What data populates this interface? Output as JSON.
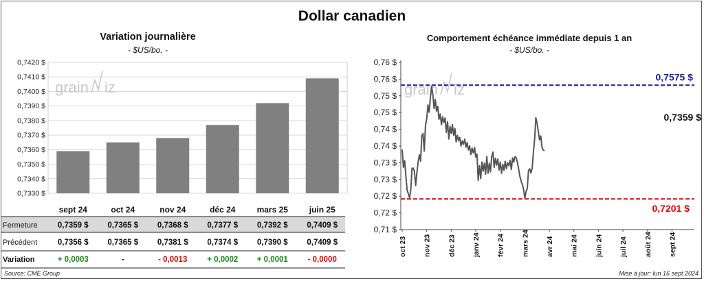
{
  "title": "Dollar canadien",
  "left": {
    "title": "Variation  journalière",
    "subtitle": "- $US/bo. -",
    "chart_data": {
      "type": "bar",
      "categories": [
        "sept 24",
        "oct 24",
        "nov 24",
        "déc 24",
        "mars 25",
        "juin 25"
      ],
      "values": [
        0.7359,
        0.7365,
        0.7368,
        0.7377,
        0.7392,
        0.7409
      ],
      "ylim": [
        0.733,
        0.742
      ],
      "yticks": [
        "0,7330 $",
        "0,7340 $",
        "0,7350 $",
        "0,7360 $",
        "0,7370 $",
        "0,7380 $",
        "0,7390 $",
        "0,7400 $",
        "0,7410 $",
        "0,7420 $"
      ],
      "bar_color": "#808080"
    },
    "table": {
      "rows": [
        {
          "label": "Fermeture",
          "cells": [
            "0,7359  $",
            "0,7365  $",
            "0,7368  $",
            "0,7377  $",
            "0,7392  $",
            "0,7409  $"
          ]
        },
        {
          "label": "Précédent",
          "cells": [
            "0,7356  $",
            "0,7365  $",
            "0,7381  $",
            "0,7374  $",
            "0,7390  $",
            "0,7409  $"
          ]
        },
        {
          "label": "Variation",
          "cells": [
            "+ 0,0003",
            "-",
            "- 0,0013",
            "+ 0,0002",
            "+ 0,0001",
            "- 0,0000"
          ],
          "colors": [
            "#1a8a1a",
            "#111111",
            "#e00000",
            "#1a8a1a",
            "#1a8a1a",
            "#e00000"
          ]
        }
      ]
    }
  },
  "right": {
    "title": "Comportement échéance immédiate depuis 1 an",
    "subtitle": "- $US/bo. -",
    "chart_data": {
      "type": "line",
      "ylim": [
        0.71,
        0.765
      ],
      "yticks": [
        "0,71 $",
        "0,72 $",
        "0,72 $",
        "0,73 $",
        "0,73 $",
        "0,74 $",
        "0,74 $",
        "0,75 $",
        "0,75 $",
        "0,76 $",
        "0,76 $"
      ],
      "xticks": [
        "oct 23",
        "nov 23",
        "déc 23",
        "janv 24",
        "févr 24",
        "mars 24",
        "avr 24",
        "mai 24",
        "juin 24",
        "juil 24",
        "août 24",
        "sept 24"
      ],
      "max_line": {
        "value": 0.7575,
        "label": "0,7575 $",
        "color": "#1a1aa0"
      },
      "min_line": {
        "value": 0.7201,
        "label": "0,7201 $",
        "color": "#e00000"
      },
      "last_label": "0,7359 $",
      "points": [
        [
          0,
          0.7363
        ],
        [
          0.05,
          0.7305
        ],
        [
          0.1,
          0.7327
        ],
        [
          0.15,
          0.7276
        ],
        [
          0.2,
          0.7231
        ],
        [
          0.25,
          0.7218
        ],
        [
          0.3,
          0.7205
        ],
        [
          0.35,
          0.7231
        ],
        [
          0.4,
          0.7302
        ],
        [
          0.45,
          0.7302
        ],
        [
          0.5,
          0.7291
        ],
        [
          0.55,
          0.7245
        ],
        [
          0.6,
          0.7288
        ],
        [
          0.65,
          0.7322
        ],
        [
          0.7,
          0.7346
        ],
        [
          0.75,
          0.7325
        ],
        [
          0.8,
          0.7408
        ],
        [
          0.85,
          0.7416
        ],
        [
          0.9,
          0.7358
        ],
        [
          0.95,
          0.7442
        ],
        [
          1.0,
          0.7465
        ],
        [
          1.05,
          0.751
        ],
        [
          1.1,
          0.7486
        ],
        [
          1.15,
          0.7534
        ],
        [
          1.2,
          0.7572
        ],
        [
          1.25,
          0.7545
        ],
        [
          1.3,
          0.7498
        ],
        [
          1.35,
          0.7528
        ],
        [
          1.4,
          0.749
        ],
        [
          1.45,
          0.7505
        ],
        [
          1.5,
          0.7463
        ],
        [
          1.55,
          0.748
        ],
        [
          1.6,
          0.7445
        ],
        [
          1.65,
          0.7471
        ],
        [
          1.7,
          0.7452
        ],
        [
          1.75,
          0.7467
        ],
        [
          1.8,
          0.742
        ],
        [
          1.85,
          0.7455
        ],
        [
          1.9,
          0.7398
        ],
        [
          1.95,
          0.744
        ],
        [
          2.0,
          0.7416
        ],
        [
          2.05,
          0.7445
        ],
        [
          2.1,
          0.741
        ],
        [
          2.15,
          0.7433
        ],
        [
          2.2,
          0.7388
        ],
        [
          2.25,
          0.741
        ],
        [
          2.3,
          0.7392
        ],
        [
          2.35,
          0.7403
        ],
        [
          2.4,
          0.7375
        ],
        [
          2.45,
          0.7392
        ],
        [
          2.5,
          0.738
        ],
        [
          2.55,
          0.7397
        ],
        [
          2.6,
          0.7371
        ],
        [
          2.65,
          0.7386
        ],
        [
          2.7,
          0.7362
        ],
        [
          2.75,
          0.7375
        ],
        [
          2.8,
          0.7347
        ],
        [
          2.85,
          0.7368
        ],
        [
          2.9,
          0.7352
        ],
        [
          2.95,
          0.737
        ],
        [
          3.0,
          0.7339
        ],
        [
          3.05,
          0.7348
        ],
        [
          3.1,
          0.7262
        ],
        [
          3.15,
          0.731
        ],
        [
          3.2,
          0.7268
        ],
        [
          3.25,
          0.7322
        ],
        [
          3.3,
          0.7292
        ],
        [
          3.35,
          0.7318
        ],
        [
          3.4,
          0.7282
        ],
        [
          3.45,
          0.734
        ],
        [
          3.5,
          0.7285
        ],
        [
          3.55,
          0.7318
        ],
        [
          3.6,
          0.729
        ],
        [
          3.65,
          0.734
        ],
        [
          3.7,
          0.7355
        ],
        [
          3.75,
          0.7305
        ],
        [
          3.8,
          0.7335
        ],
        [
          3.85,
          0.7312
        ],
        [
          3.9,
          0.7332
        ],
        [
          3.95,
          0.7296
        ],
        [
          4.0,
          0.7322
        ],
        [
          4.05,
          0.7285
        ],
        [
          4.1,
          0.7315
        ],
        [
          4.15,
          0.7295
        ],
        [
          4.2,
          0.7325
        ],
        [
          4.25,
          0.73
        ],
        [
          4.3,
          0.732
        ],
        [
          4.35,
          0.731
        ],
        [
          4.4,
          0.7328
        ],
        [
          4.45,
          0.7298
        ],
        [
          4.5,
          0.7336
        ],
        [
          4.55,
          0.7322
        ],
        [
          4.6,
          0.734
        ],
        [
          4.65,
          0.7336
        ],
        [
          4.7,
          0.732
        ],
        [
          4.75,
          0.7298
        ],
        [
          4.8,
          0.7274
        ],
        [
          4.85,
          0.726
        ],
        [
          4.9,
          0.7248
        ],
        [
          4.95,
          0.7232
        ],
        [
          5.0,
          0.7203
        ],
        [
          5.05,
          0.7225
        ],
        [
          5.1,
          0.7236
        ],
        [
          5.15,
          0.7294
        ],
        [
          5.2,
          0.73
        ],
        [
          5.25,
          0.7286
        ],
        [
          5.3,
          0.7302
        ],
        [
          5.35,
          0.7356
        ],
        [
          5.4,
          0.7398
        ],
        [
          5.45,
          0.7468
        ],
        [
          5.5,
          0.745
        ],
        [
          5.55,
          0.7422
        ],
        [
          5.6,
          0.7395
        ],
        [
          5.65,
          0.7408
        ],
        [
          5.7,
          0.737
        ],
        [
          5.75,
          0.7362
        ],
        [
          5.8,
          0.7359
        ]
      ]
    }
  },
  "footer": {
    "source": "Source: CME Group",
    "update": "Mise à jour: lun 16 sept 2024"
  }
}
